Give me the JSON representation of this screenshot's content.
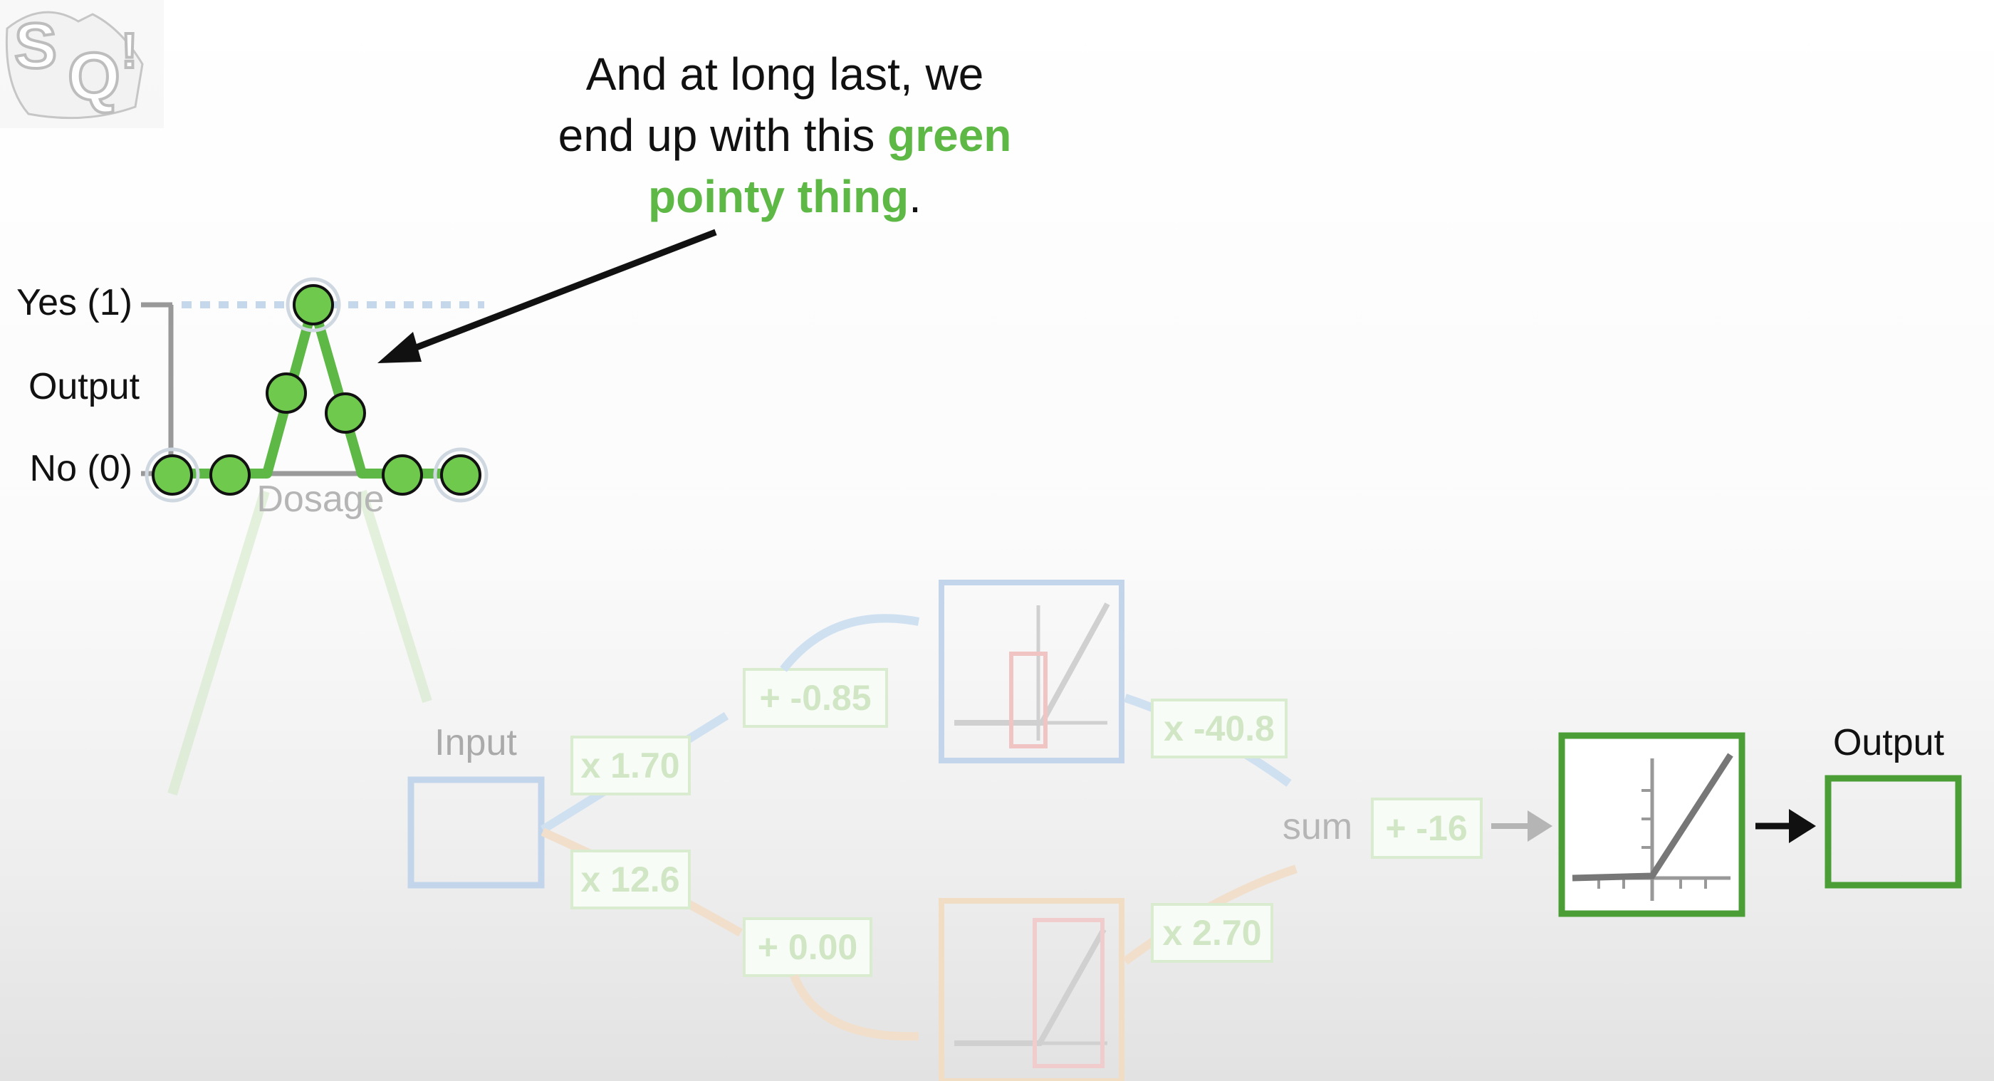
{
  "caption": {
    "line1": "And at long last, we",
    "line2_prefix": "end up with this ",
    "line2_highlight": "green",
    "line3_highlight": "pointy thing",
    "line3_suffix": "."
  },
  "mini_graph": {
    "yes_label": "Yes (1)",
    "output_label": "Output",
    "no_label": "No (0)",
    "dosage_label": "Dosage"
  },
  "network": {
    "input_label": "Input",
    "weight_top": "x 1.70",
    "weight_bottom": "x 12.6",
    "bias_top": "+ -0.85",
    "bias_bottom": "+ 0.00",
    "out_weight_top": "x -40.8",
    "out_weight_bottom": "x 2.70",
    "sum_label": "sum",
    "final_bias": "+ -16",
    "output_label": "Output"
  },
  "colors": {
    "highlight_green": "#5db845",
    "box_green": "#4a9e35",
    "caption_text": "#111111",
    "faded_blue": "#c6d8ec",
    "faded_orange": "#f1dcc4",
    "faded_green": "#d6ecce"
  }
}
